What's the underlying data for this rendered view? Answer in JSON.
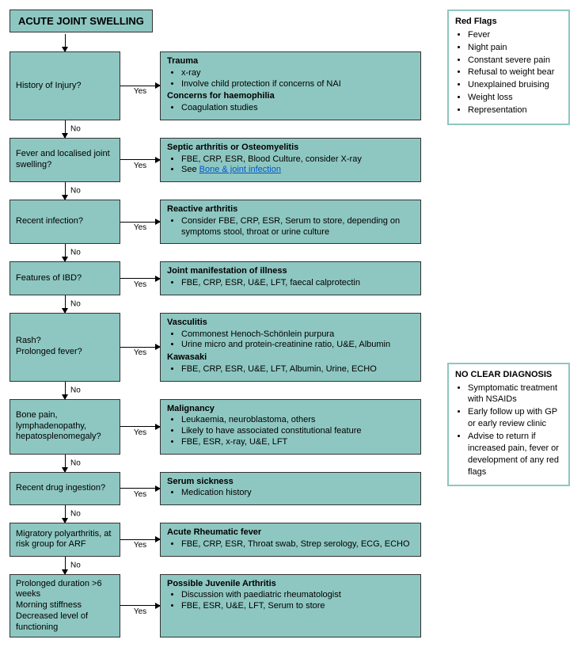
{
  "title": "ACUTE JOINT SWELLING",
  "labels": {
    "yes": "Yes",
    "no": "No"
  },
  "colors": {
    "node_fill": "#8ec7c1",
    "node_border": "#333333",
    "side_border": "#8ec7c1",
    "link": "#0055cc",
    "arrow": "#000000",
    "background": "#ffffff"
  },
  "steps": [
    {
      "question": "History of Injury?",
      "outcome": {
        "sections": [
          {
            "header": "Trauma",
            "items": [
              "x-ray",
              "Involve child protection if concerns of NAI"
            ]
          },
          {
            "header": "Concerns for haemophilia",
            "items": [
              "Coagulation studies"
            ]
          }
        ]
      }
    },
    {
      "question": "Fever and localised joint swelling?",
      "outcome": {
        "sections": [
          {
            "header": "Septic arthritis or Osteomyelitis",
            "items": [
              "FBE, CRP, ESR, Blood Culture, consider X-ray",
              {
                "prefix": "See ",
                "link": "Bone & joint infection"
              }
            ]
          }
        ]
      }
    },
    {
      "question": "Recent infection?",
      "outcome": {
        "sections": [
          {
            "header": "Reactive arthritis",
            "items": [
              "Consider FBE, CRP, ESR, Serum to store, depending on symptoms stool, throat or urine culture"
            ]
          }
        ]
      }
    },
    {
      "question": "Features of IBD?",
      "outcome": {
        "sections": [
          {
            "header": "Joint manifestation of illness",
            "items": [
              "FBE, CRP, ESR, U&E, LFT, faecal calprotectin"
            ]
          }
        ]
      }
    },
    {
      "question": "Rash?\nProlonged fever?",
      "outcome": {
        "sections": [
          {
            "header": "Vasculitis",
            "items": [
              "Commonest Henoch-Schönlein purpura",
              "Urine micro and protein-creatinine ratio, U&E, Albumin"
            ]
          },
          {
            "header": "Kawasaki",
            "items": [
              "FBE, CRP, ESR, U&E, LFT, Albumin, Urine, ECHO"
            ]
          }
        ]
      }
    },
    {
      "question": "Bone pain, lymphadenopathy, hepatosplenomegaly?",
      "outcome": {
        "sections": [
          {
            "header": "Malignancy",
            "items": [
              "Leukaemia, neuroblastoma, others",
              "Likely to have associated constitutional feature",
              "FBE, ESR, x-ray, U&E, LFT"
            ]
          }
        ]
      }
    },
    {
      "question": "Recent drug ingestion?",
      "outcome": {
        "sections": [
          {
            "header": "Serum sickness",
            "items": [
              "Medication history"
            ]
          }
        ]
      }
    },
    {
      "question": "Migratory polyarthritis, at risk group for ARF",
      "outcome": {
        "sections": [
          {
            "header": "Acute Rheumatic fever",
            "items": [
              "FBE, CRP, ESR, Throat swab, Strep serology, ECG, ECHO"
            ]
          }
        ]
      }
    },
    {
      "question": "Prolonged duration >6 weeks\nMorning stiffness\nDecreased level of functioning",
      "no_arrow_after": true,
      "outcome": {
        "sections": [
          {
            "header": "Possible Juvenile Arthritis",
            "items": [
              "Discussion with paediatric rheumatologist",
              "FBE, ESR, U&E, LFT, Serum to store"
            ]
          }
        ]
      }
    }
  ],
  "red_flags": {
    "header": "Red Flags",
    "items": [
      "Fever",
      "Night pain",
      "Constant severe pain",
      "Refusal to weight bear",
      "Unexplained bruising",
      "Weight loss",
      "Representation"
    ]
  },
  "no_diagnosis": {
    "header": "NO CLEAR DIAGNOSIS",
    "items": [
      "Symptomatic treatment with NSAIDs",
      "Early follow up with GP or early review clinic",
      "Advise to return if increased pain, fever or development of any red flags"
    ]
  }
}
